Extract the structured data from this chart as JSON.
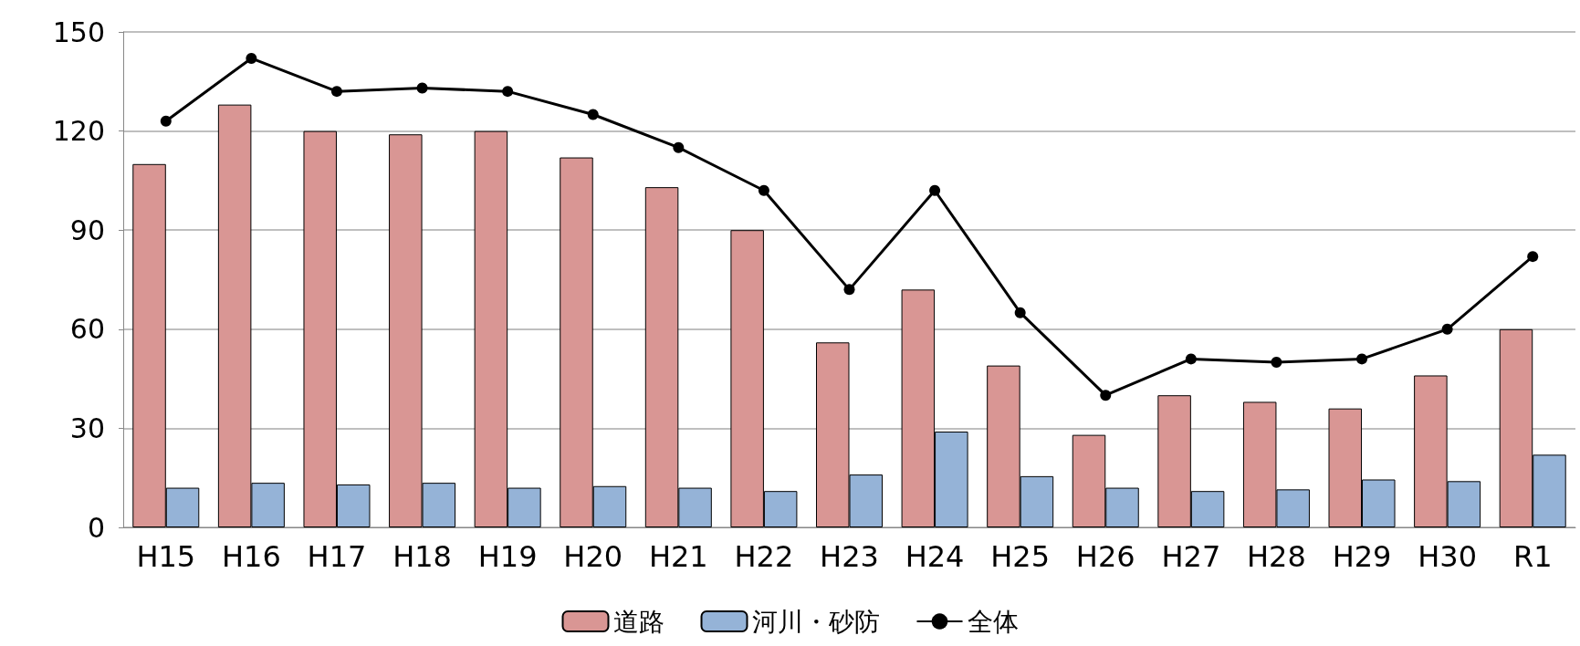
{
  "chart_data": {
    "type": "bar",
    "categories": [
      "H15",
      "H16",
      "H17",
      "H18",
      "H19",
      "H20",
      "H21",
      "H22",
      "H23",
      "H24",
      "H25",
      "H26",
      "H27",
      "H28",
      "H29",
      "H30",
      "R1"
    ],
    "series": [
      {
        "name": "道路",
        "color": "#d99694",
        "values": [
          110,
          128,
          120,
          119,
          120,
          112,
          103,
          90,
          56,
          72,
          49,
          28,
          40,
          38,
          36,
          46,
          60
        ]
      },
      {
        "name": "河川・砂防",
        "color": "#95b3d7",
        "values": [
          12,
          13.5,
          13,
          13.5,
          12,
          12.5,
          12,
          11,
          16,
          29,
          15.5,
          12,
          11,
          11.5,
          14.5,
          14,
          22
        ]
      },
      {
        "name": "全体",
        "type": "line",
        "color": "#000000",
        "values": [
          123,
          142,
          132,
          133,
          132,
          125,
          115,
          102,
          72,
          102,
          65,
          40,
          51,
          50,
          51,
          60,
          82
        ]
      }
    ],
    "ylim": [
      0,
      150
    ],
    "yticks": [
      0,
      30,
      60,
      90,
      120,
      150
    ],
    "grid": "y",
    "legend": "bottom",
    "marker": "circle",
    "line_style": "solid"
  }
}
